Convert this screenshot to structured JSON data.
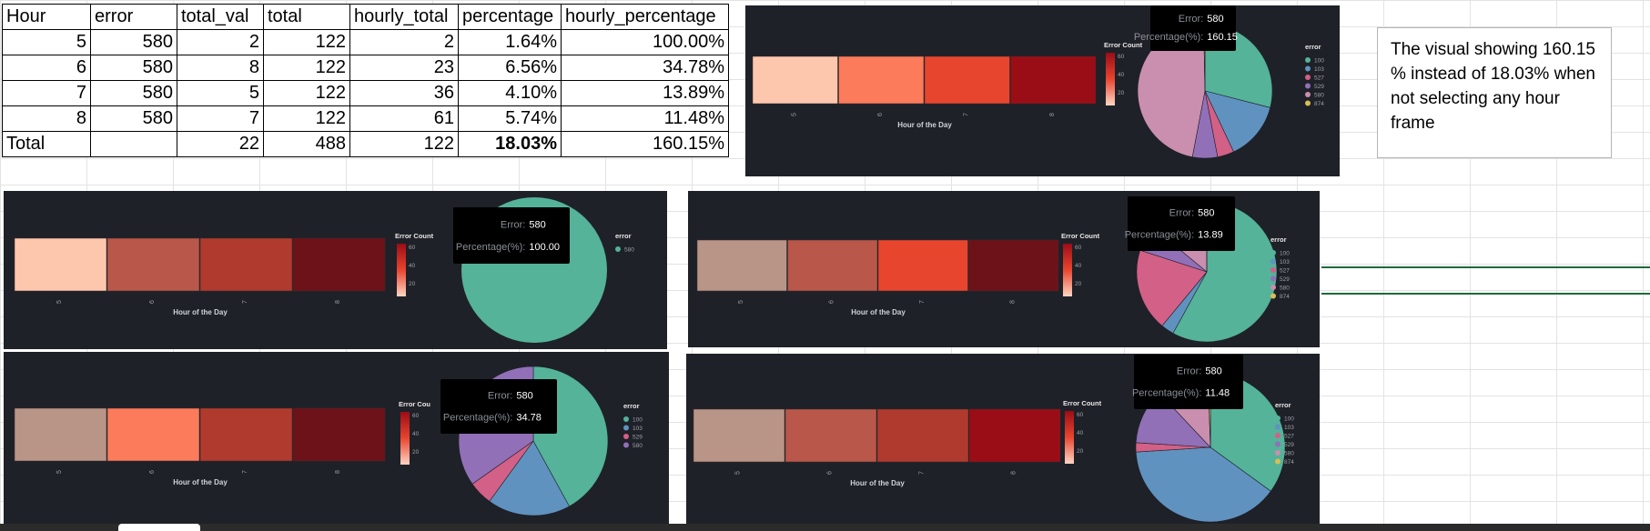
{
  "sheet": {
    "headers": [
      "Hour",
      "error",
      "total_val",
      "total",
      "hourly_total",
      "percentage",
      "hourly_percentage"
    ],
    "rows": [
      [
        "5",
        "580",
        "2",
        "122",
        "2",
        "1.64%",
        "100.00%"
      ],
      [
        "6",
        "580",
        "8",
        "122",
        "23",
        "6.56%",
        "34.78%"
      ],
      [
        "7",
        "580",
        "5",
        "122",
        "36",
        "4.10%",
        "13.89%"
      ],
      [
        "8",
        "580",
        "7",
        "122",
        "61",
        "5.74%",
        "11.48%"
      ],
      [
        "Total",
        "",
        "22",
        "488",
        "122",
        "18.03%",
        "160.15%"
      ]
    ]
  },
  "note": {
    "text": "The visual showing 160.15 % instead of 18.03% when not selecting any hour frame"
  },
  "panels": [
    {
      "id": "p1",
      "heat": {
        "colors": [
          "#fdc7ae",
          "#fb7b5b",
          "#e8452f",
          "#9b0d16"
        ],
        "labels": [
          "5",
          "6",
          "7",
          "8"
        ],
        "xlabel": "Hour of the Day"
      },
      "legend_title": "Error Count",
      "scale": [
        "60",
        "40",
        "20"
      ],
      "tooltip": {
        "error_key": "Error:",
        "error_val": "580",
        "pct_key": "Percentage(%):",
        "pct_val": "160.15"
      },
      "pie_legend_title": "error",
      "pie_legend": [
        {
          "label": "100",
          "color": "#54b399"
        },
        {
          "label": "103",
          "color": "#6092c0"
        },
        {
          "label": "527",
          "color": "#d36086"
        },
        {
          "label": "529",
          "color": "#9170b8"
        },
        {
          "label": "580",
          "color": "#ca8eae"
        },
        {
          "label": "874",
          "color": "#d6bf57"
        }
      ],
      "pie": [
        {
          "label": "100",
          "value": 29,
          "color": "#54b399"
        },
        {
          "label": "103",
          "value": 14,
          "color": "#6092c0"
        },
        {
          "label": "527",
          "value": 4,
          "color": "#d36086"
        },
        {
          "label": "529",
          "value": 6,
          "color": "#9170b8"
        },
        {
          "label": "580",
          "value": 46.7,
          "color": "#ca8eae"
        },
        {
          "label": "874",
          "value": 0.3,
          "color": "#d6bf57"
        }
      ]
    },
    {
      "id": "p2",
      "heat": {
        "colors": [
          "#fdc7ae",
          "#b8574a",
          "#b03a2e",
          "#6e1219"
        ],
        "labels": [
          "5",
          "6",
          "7",
          "8"
        ],
        "xlabel": "Hour of the Day"
      },
      "legend_title": "Error Count",
      "scale": [
        "60",
        "40",
        "20"
      ],
      "tooltip": {
        "error_key": "Error:",
        "error_val": "580",
        "pct_key": "Percentage(%):",
        "pct_val": "100.00"
      },
      "pie_legend_title": "error",
      "pie_legend": [
        {
          "label": "580",
          "color": "#54b399"
        }
      ],
      "pie": [
        {
          "label": "580",
          "value": 100,
          "color": "#54b399"
        }
      ]
    },
    {
      "id": "p3",
      "heat": {
        "colors": [
          "#b99587",
          "#b8574a",
          "#e8452f",
          "#6e1219"
        ],
        "labels": [
          "5",
          "6",
          "7",
          "8"
        ],
        "xlabel": "Hour of the Day"
      },
      "legend_title": "Error Count",
      "scale": [
        "60",
        "40",
        "20"
      ],
      "tooltip": {
        "error_key": "Error:",
        "error_val": "580",
        "pct_key": "Percentage(%):",
        "pct_val": "13.89"
      },
      "pie_legend_title": "error",
      "pie_legend": [
        {
          "label": "100",
          "color": "#54b399"
        },
        {
          "label": "103",
          "color": "#6092c0"
        },
        {
          "label": "527",
          "color": "#d36086"
        },
        {
          "label": "529",
          "color": "#9170b8"
        },
        {
          "label": "580",
          "color": "#ca8eae"
        },
        {
          "label": "874",
          "color": "#d6bf57"
        }
      ],
      "pie": [
        {
          "label": "100",
          "value": 58,
          "color": "#54b399"
        },
        {
          "label": "103",
          "value": 3,
          "color": "#6092c0"
        },
        {
          "label": "527",
          "value": 19,
          "color": "#d36086"
        },
        {
          "label": "529",
          "value": 6,
          "color": "#9170b8"
        },
        {
          "label": "580",
          "value": 13.89,
          "color": "#ca8eae"
        },
        {
          "label": "874",
          "value": 0.11,
          "color": "#d6bf57"
        }
      ]
    },
    {
      "id": "p4",
      "heat": {
        "colors": [
          "#b99587",
          "#fb7b5b",
          "#b03a2e",
          "#6e1219"
        ],
        "labels": [
          "5",
          "6",
          "7",
          "8"
        ],
        "xlabel": "Hour of the Day"
      },
      "legend_title": "Error Cou",
      "scale": [
        "60",
        "40",
        "20"
      ],
      "tooltip": {
        "error_key": "Error:",
        "error_val": "580",
        "pct_key": "Percentage(%):",
        "pct_val": "34.78"
      },
      "pie_legend_title": "error",
      "pie_legend": [
        {
          "label": "100",
          "color": "#54b399"
        },
        {
          "label": "103",
          "color": "#6092c0"
        },
        {
          "label": "529",
          "color": "#d36086"
        },
        {
          "label": "580",
          "color": "#9170b8"
        }
      ],
      "pie": [
        {
          "label": "100",
          "value": 42,
          "color": "#54b399"
        },
        {
          "label": "103",
          "value": 18,
          "color": "#6092c0"
        },
        {
          "label": "529",
          "value": 5.22,
          "color": "#d36086"
        },
        {
          "label": "580",
          "value": 34.78,
          "color": "#9170b8"
        }
      ]
    },
    {
      "id": "p5",
      "heat": {
        "colors": [
          "#b99587",
          "#b8574a",
          "#b03a2e",
          "#9b0d16"
        ],
        "labels": [
          "5",
          "6",
          "7",
          "8"
        ],
        "xlabel": "Hour of the Day"
      },
      "legend_title": "Error Count",
      "scale": [
        "60",
        "40",
        "20"
      ],
      "tooltip": {
        "error_key": "Error:",
        "error_val": "580",
        "pct_key": "Percentage(%):",
        "pct_val": "11.48"
      },
      "pie_legend_title": "error",
      "pie_legend": [
        {
          "label": "100",
          "color": "#54b399"
        },
        {
          "label": "103",
          "color": "#6092c0"
        },
        {
          "label": "527",
          "color": "#d36086"
        },
        {
          "label": "529",
          "color": "#9170b8"
        },
        {
          "label": "580",
          "color": "#ca8eae"
        },
        {
          "label": "874",
          "color": "#d6bf57"
        }
      ],
      "pie": [
        {
          "label": "100",
          "value": 35,
          "color": "#54b399"
        },
        {
          "label": "103",
          "value": 39,
          "color": "#6092c0"
        },
        {
          "label": "527",
          "value": 2,
          "color": "#d36086"
        },
        {
          "label": "529",
          "value": 12,
          "color": "#9170b8"
        },
        {
          "label": "580",
          "value": 11.48,
          "color": "#ca8eae"
        },
        {
          "label": "874",
          "value": 0.52,
          "color": "#d6bf57"
        }
      ]
    }
  ]
}
